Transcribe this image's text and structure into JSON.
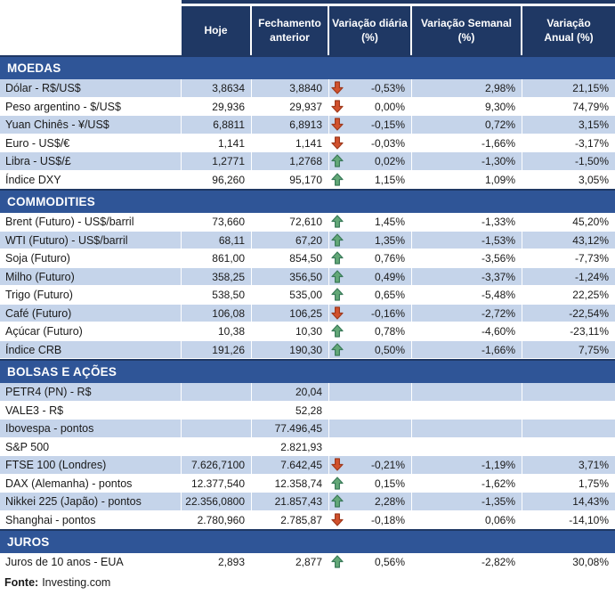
{
  "header": {
    "columns": [
      {
        "id": "hoje",
        "line1": "Hoje",
        "line2": ""
      },
      {
        "id": "fechamento-anterior",
        "line1": "Fechamento",
        "line2": "anterior"
      },
      {
        "id": "variacao-diaria",
        "line1": "Variação diária",
        "line2": "(%)"
      },
      {
        "id": "variacao-semanal",
        "line1": "Variação Semanal",
        "line2": "(%)"
      },
      {
        "id": "variacao-anual",
        "line1": "Variação",
        "line2": "Anual (%)"
      }
    ]
  },
  "sections": [
    {
      "id": "moedas",
      "title": "MOEDAS",
      "first_row_shaded": true,
      "rows": [
        {
          "label": "Dólar - R$/US$",
          "hoje": "3,8634",
          "fechamento": "3,8840",
          "arrow": "down",
          "diaria": "-0,53%",
          "semanal": "2,98%",
          "anual": "21,15%"
        },
        {
          "label": "Peso argentino - $/US$",
          "hoje": "29,936",
          "fechamento": "29,937",
          "arrow": "down",
          "diaria": "0,00%",
          "semanal": "9,30%",
          "anual": "74,79%"
        },
        {
          "label": "Yuan Chinês - ¥/US$",
          "hoje": "6,8811",
          "fechamento": "6,8913",
          "arrow": "down",
          "diaria": "-0,15%",
          "semanal": "0,72%",
          "anual": "3,15%"
        },
        {
          "label": "Euro - US$/€",
          "hoje": "1,141",
          "fechamento": "1,141",
          "arrow": "down",
          "diaria": "-0,03%",
          "semanal": "-1,66%",
          "anual": "-3,17%"
        },
        {
          "label": "Libra - US$/£",
          "hoje": "1,2771",
          "fechamento": "1,2768",
          "arrow": "up",
          "diaria": "0,02%",
          "semanal": "-1,30%",
          "anual": "-1,50%"
        },
        {
          "label": "Índice DXY",
          "hoje": "96,260",
          "fechamento": "95,170",
          "arrow": "up",
          "diaria": "1,15%",
          "semanal": "1,09%",
          "anual": "3,05%"
        }
      ]
    },
    {
      "id": "commodities",
      "title": "COMMODITIES",
      "first_row_shaded": false,
      "rows": [
        {
          "label": "Brent (Futuro) - US$/barril",
          "hoje": "73,660",
          "fechamento": "72,610",
          "arrow": "up",
          "diaria": "1,45%",
          "semanal": "-1,33%",
          "anual": "45,20%"
        },
        {
          "label": "WTI (Futuro) - US$/barril",
          "hoje": "68,11",
          "fechamento": "67,20",
          "arrow": "up",
          "diaria": "1,35%",
          "semanal": "-1,53%",
          "anual": "43,12%"
        },
        {
          "label": "Soja (Futuro)",
          "hoje": "861,00",
          "fechamento": "854,50",
          "arrow": "up",
          "diaria": "0,76%",
          "semanal": "-3,56%",
          "anual": "-7,73%"
        },
        {
          "label": "Milho (Futuro)",
          "hoje": "358,25",
          "fechamento": "356,50",
          "arrow": "up",
          "diaria": "0,49%",
          "semanal": "-3,37%",
          "anual": "-1,24%"
        },
        {
          "label": "Trigo (Futuro)",
          "hoje": "538,50",
          "fechamento": "535,00",
          "arrow": "up",
          "diaria": "0,65%",
          "semanal": "-5,48%",
          "anual": "22,25%"
        },
        {
          "label": "Café (Futuro)",
          "hoje": "106,08",
          "fechamento": "106,25",
          "arrow": "down",
          "diaria": "-0,16%",
          "semanal": "-2,72%",
          "anual": "-22,54%"
        },
        {
          "label": "Açúcar (Futuro)",
          "hoje": "10,38",
          "fechamento": "10,30",
          "arrow": "up",
          "diaria": "0,78%",
          "semanal": "-4,60%",
          "anual": "-23,11%"
        },
        {
          "label": "Índice CRB",
          "hoje": "191,26",
          "fechamento": "190,30",
          "arrow": "up",
          "diaria": "0,50%",
          "semanal": "-1,66%",
          "anual": "7,75%"
        }
      ]
    },
    {
      "id": "bolsas-e-acoes",
      "title": "BOLSAS E AÇÕES",
      "first_row_shaded": true,
      "rows": [
        {
          "label": "PETR4 (PN) - R$",
          "hoje": "",
          "fechamento": "20,04",
          "arrow": "",
          "diaria": "",
          "semanal": "",
          "anual": ""
        },
        {
          "label": "VALE3 - R$",
          "hoje": "",
          "fechamento": "52,28",
          "arrow": "",
          "diaria": "",
          "semanal": "",
          "anual": ""
        },
        {
          "label": "Ibovespa - pontos",
          "hoje": "",
          "fechamento": "77.496,45",
          "arrow": "",
          "diaria": "",
          "semanal": "",
          "anual": ""
        },
        {
          "label": "S&P 500",
          "hoje": "",
          "fechamento": "2.821,93",
          "arrow": "",
          "diaria": "",
          "semanal": "",
          "anual": ""
        },
        {
          "label": "FTSE 100 (Londres)",
          "hoje": "7.626,7100",
          "fechamento": "7.642,45",
          "arrow": "down",
          "diaria": "-0,21%",
          "semanal": "-1,19%",
          "anual": "3,71%"
        },
        {
          "label": "DAX (Alemanha) - pontos",
          "hoje": "12.377,540",
          "fechamento": "12.358,74",
          "arrow": "up",
          "diaria": "0,15%",
          "semanal": "-1,62%",
          "anual": "1,75%"
        },
        {
          "label": "Nikkei 225 (Japão) - pontos",
          "hoje": "22.356,0800",
          "fechamento": "21.857,43",
          "arrow": "up",
          "diaria": "2,28%",
          "semanal": "-1,35%",
          "anual": "14,43%"
        },
        {
          "label": "Shanghai - pontos",
          "hoje": "2.780,960",
          "fechamento": "2.785,87",
          "arrow": "down",
          "diaria": "-0,18%",
          "semanal": "0,06%",
          "anual": "-14,10%"
        }
      ]
    },
    {
      "id": "juros",
      "title": "JUROS",
      "first_row_shaded": false,
      "rows": [
        {
          "label": "Juros de 10 anos - EUA",
          "hoje": "2,893",
          "fechamento": "2,877",
          "arrow": "up",
          "diaria": "0,56%",
          "semanal": "-2,82%",
          "anual": "30,08%"
        }
      ]
    }
  ],
  "footer": {
    "label": "Fonte:",
    "value": "Investing.com"
  },
  "colors": {
    "header_bg": "#1F3864",
    "section_band_bg": "#2F5597",
    "row_shaded_bg": "#C5D4EA",
    "row_plain_bg": "#FFFFFF",
    "up_arrow": "#63A877",
    "up_arrow_stroke": "#3A7A5A",
    "down_arrow": "#D2512D",
    "down_arrow_stroke": "#9E3A1E"
  }
}
